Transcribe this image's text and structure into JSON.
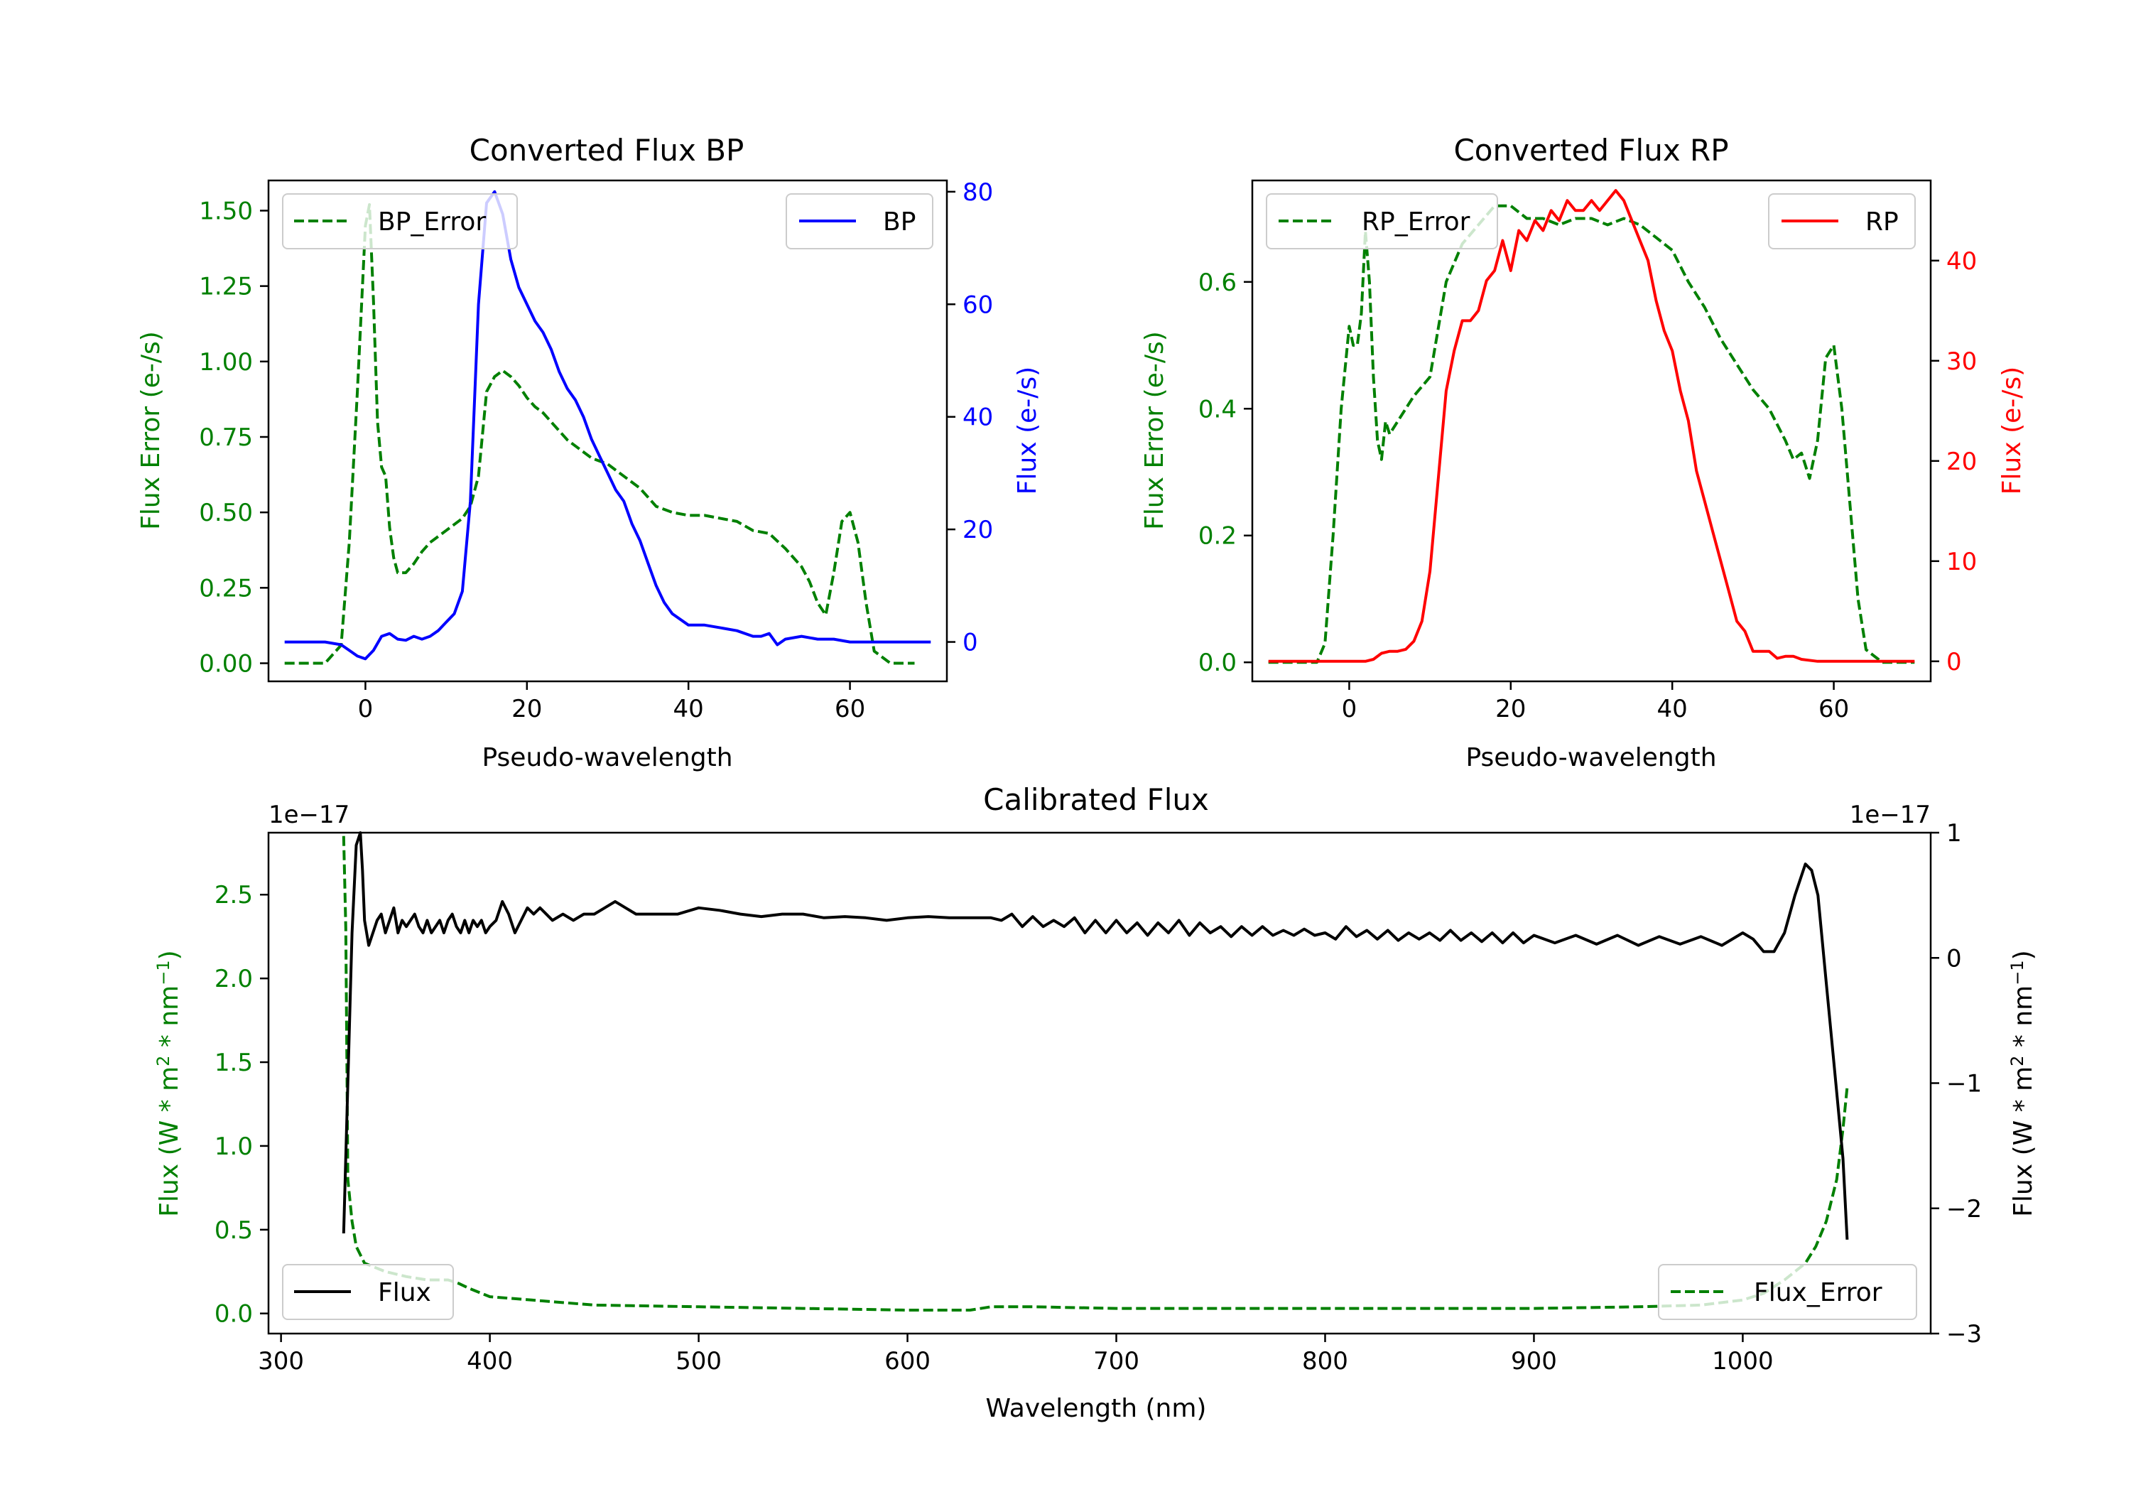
{
  "chart_data": [
    {
      "id": "bp",
      "type": "line",
      "title": "Converted Flux BP",
      "xlabel": "Pseudo-wavelength",
      "xlim": [
        -12,
        72
      ],
      "xticks": [
        0,
        20,
        40,
        60
      ],
      "left_axis": {
        "label": "Flux Error (e-/s)",
        "color": "#008000",
        "ylim": [
          -0.06,
          1.6
        ],
        "ticks": [
          0.0,
          0.25,
          0.5,
          0.75,
          1.0,
          1.25,
          1.5
        ],
        "tick_labels": [
          "0.00",
          "0.25",
          "0.50",
          "0.75",
          "1.00",
          "1.25",
          "1.50"
        ]
      },
      "right_axis": {
        "label": "Flux (e-/s)",
        "color": "#0000ff",
        "ylim": [
          -7,
          82
        ],
        "ticks": [
          0,
          20,
          40,
          60,
          80
        ],
        "tick_labels": [
          "0",
          "20",
          "40",
          "60",
          "80"
        ]
      },
      "series": [
        {
          "name": "BP_Error",
          "axis": "left",
          "color": "#008000",
          "dashed": true,
          "x": [
            -10,
            -5,
            -3,
            -2,
            -1,
            0,
            0.5,
            1,
            1.5,
            2,
            2.5,
            3,
            3.5,
            4,
            5,
            6,
            7,
            8,
            9,
            10,
            11,
            12,
            13,
            14,
            15,
            16,
            17,
            18,
            19,
            20,
            21,
            22,
            23,
            24,
            25,
            26,
            28,
            30,
            32,
            34,
            36,
            38,
            40,
            42,
            44,
            46,
            48,
            50,
            52,
            54,
            55,
            56,
            57,
            58,
            59,
            60,
            61,
            62,
            63,
            65,
            68
          ],
          "values": [
            0.0,
            0.0,
            0.06,
            0.4,
            0.9,
            1.45,
            1.52,
            1.2,
            0.8,
            0.65,
            0.62,
            0.45,
            0.35,
            0.3,
            0.3,
            0.33,
            0.37,
            0.4,
            0.42,
            0.44,
            0.46,
            0.48,
            0.52,
            0.62,
            0.9,
            0.95,
            0.97,
            0.95,
            0.92,
            0.88,
            0.85,
            0.83,
            0.8,
            0.77,
            0.74,
            0.72,
            0.68,
            0.66,
            0.62,
            0.58,
            0.52,
            0.5,
            0.49,
            0.49,
            0.48,
            0.47,
            0.44,
            0.43,
            0.38,
            0.32,
            0.27,
            0.2,
            0.16,
            0.3,
            0.47,
            0.5,
            0.4,
            0.2,
            0.04,
            0.0,
            0.0
          ]
        },
        {
          "name": "BP",
          "axis": "right",
          "color": "#0000ff",
          "dashed": false,
          "x": [
            -10,
            -5,
            -3,
            -2,
            -1,
            0,
            1,
            2,
            3,
            4,
            5,
            6,
            7,
            8,
            9,
            10,
            11,
            12,
            13,
            14,
            15,
            16,
            17,
            18,
            19,
            20,
            21,
            22,
            23,
            24,
            25,
            26,
            27,
            28,
            29,
            30,
            31,
            32,
            33,
            34,
            35,
            36,
            37,
            38,
            40,
            42,
            44,
            46,
            48,
            49,
            50,
            51,
            52,
            54,
            56,
            58,
            60,
            62,
            65,
            70
          ],
          "values": [
            0,
            0,
            -0.5,
            -1.5,
            -2.5,
            -3,
            -1.5,
            1,
            1.5,
            0.5,
            0.3,
            1,
            0.5,
            1,
            2,
            3.5,
            5,
            9,
            25,
            60,
            78,
            80,
            76,
            68,
            63,
            60,
            57,
            55,
            52,
            48,
            45,
            43,
            40,
            36,
            33,
            30,
            27,
            25,
            21,
            18,
            14,
            10,
            7,
            5,
            3,
            3,
            2.5,
            2,
            1,
            1,
            1.5,
            -0.5,
            0.5,
            1,
            0.5,
            0.5,
            0,
            0,
            0,
            0
          ]
        }
      ],
      "legends": [
        {
          "series": "BP_Error",
          "label": "BP_Error",
          "placement": "upper left"
        },
        {
          "series": "BP",
          "label": "BP",
          "placement": "upper right"
        }
      ]
    },
    {
      "id": "rp",
      "type": "line",
      "title": "Converted Flux RP",
      "xlabel": "Pseudo-wavelength",
      "xlim": [
        -12,
        72
      ],
      "xticks": [
        0,
        20,
        40,
        60
      ],
      "left_axis": {
        "label": "Flux Error (e-/s)",
        "color": "#008000",
        "ylim": [
          -0.03,
          0.76
        ],
        "ticks": [
          0.0,
          0.2,
          0.4,
          0.6
        ],
        "tick_labels": [
          "0.0",
          "0.2",
          "0.4",
          "0.6"
        ]
      },
      "right_axis": {
        "label": "Flux (e-/s)",
        "color": "#ff0000",
        "ylim": [
          -2,
          48
        ],
        "ticks": [
          0,
          10,
          20,
          30,
          40
        ],
        "tick_labels": [
          "0",
          "10",
          "20",
          "30",
          "40"
        ]
      },
      "series": [
        {
          "name": "RP_Error",
          "axis": "left",
          "color": "#008000",
          "dashed": true,
          "x": [
            -10,
            -4,
            -3,
            -2,
            -1,
            0,
            0.5,
            1,
            1.5,
            2,
            2.5,
            3,
            3.5,
            4,
            4.5,
            5,
            6,
            8,
            10,
            12,
            14,
            16,
            18,
            20,
            22,
            24,
            26,
            28,
            30,
            32,
            34,
            36,
            38,
            40,
            42,
            44,
            46,
            48,
            50,
            52,
            54,
            55,
            56,
            57,
            58,
            59,
            60,
            61,
            62,
            63,
            64,
            66,
            70
          ],
          "values": [
            0.0,
            0.0,
            0.03,
            0.2,
            0.4,
            0.53,
            0.5,
            0.5,
            0.55,
            0.68,
            0.6,
            0.45,
            0.35,
            0.32,
            0.38,
            0.36,
            0.38,
            0.42,
            0.45,
            0.6,
            0.66,
            0.69,
            0.72,
            0.72,
            0.7,
            0.7,
            0.69,
            0.7,
            0.7,
            0.69,
            0.7,
            0.69,
            0.67,
            0.65,
            0.6,
            0.56,
            0.51,
            0.47,
            0.43,
            0.4,
            0.35,
            0.32,
            0.33,
            0.29,
            0.35,
            0.48,
            0.5,
            0.4,
            0.25,
            0.1,
            0.02,
            0.0,
            0.0
          ]
        },
        {
          "name": "RP",
          "axis": "right",
          "color": "#ff0000",
          "dashed": false,
          "x": [
            -10,
            0,
            2,
            3,
            4,
            5,
            6,
            7,
            8,
            9,
            10,
            11,
            12,
            13,
            14,
            15,
            16,
            17,
            18,
            19,
            20,
            21,
            22,
            23,
            24,
            25,
            26,
            27,
            28,
            29,
            30,
            31,
            32,
            33,
            34,
            35,
            36,
            37,
            38,
            39,
            40,
            41,
            42,
            43,
            44,
            45,
            46,
            47,
            48,
            49,
            50,
            51,
            52,
            53,
            54,
            55,
            56,
            58,
            60,
            62,
            65,
            70
          ],
          "values": [
            0,
            0,
            0,
            0.2,
            0.8,
            1.0,
            1,
            1.2,
            2,
            4,
            9,
            18,
            27,
            31,
            34,
            34,
            35,
            38,
            39,
            42,
            39,
            43,
            42,
            44,
            43,
            45,
            44,
            46,
            45,
            45,
            46,
            45,
            46,
            47,
            46,
            44,
            42,
            40,
            36,
            33,
            31,
            27,
            24,
            19,
            16,
            13,
            10,
            7,
            4,
            3,
            1,
            1,
            1,
            0.3,
            0.5,
            0.5,
            0.2,
            0,
            0,
            0,
            0,
            0
          ]
        }
      ],
      "legends": [
        {
          "series": "RP_Error",
          "label": "RP_Error",
          "placement": "upper left"
        },
        {
          "series": "RP",
          "label": "RP",
          "placement": "upper right"
        }
      ]
    },
    {
      "id": "cal",
      "type": "line",
      "title": "Calibrated Flux",
      "xlabel": "Wavelength (nm)",
      "xlim": [
        294,
        1090
      ],
      "xticks": [
        300,
        400,
        500,
        600,
        700,
        800,
        900,
        1000
      ],
      "left_axis": {
        "label_parts": [
          "Flux (W * m",
          "2",
          " * nm",
          "−1",
          ")"
        ],
        "color": "#008000",
        "offset_text": "1e−17",
        "ylim": [
          -0.12,
          2.87
        ],
        "ticks": [
          0.0,
          0.5,
          1.0,
          1.5,
          2.0,
          2.5
        ],
        "tick_labels": [
          "0.0",
          "0.5",
          "1.0",
          "1.5",
          "2.0",
          "2.5"
        ]
      },
      "right_axis": {
        "label_parts": [
          "Flux (W * m",
          "2",
          " * nm",
          "−1",
          ")"
        ],
        "color": "#000000",
        "offset_text": "1e−17",
        "ylim": [
          -3.0,
          1.0
        ],
        "ticks": [
          -3,
          -2,
          -1,
          0,
          1
        ],
        "tick_labels": [
          "−3",
          "−2",
          "−1",
          "0",
          "1"
        ]
      },
      "series": [
        {
          "name": "Flux_Error",
          "axis": "left",
          "color": "#008000",
          "dashed": true,
          "x": [
            330,
            331,
            332,
            334,
            336,
            340,
            350,
            360,
            370,
            380,
            385,
            390,
            400,
            420,
            450,
            500,
            550,
            600,
            630,
            640,
            660,
            700,
            800,
            900,
            950,
            980,
            1000,
            1010,
            1020,
            1030,
            1035,
            1040,
            1045,
            1048,
            1050
          ],
          "values": [
            2.85,
            2.3,
            0.8,
            0.55,
            0.4,
            0.3,
            0.25,
            0.22,
            0.2,
            0.2,
            0.18,
            0.15,
            0.1,
            0.08,
            0.05,
            0.04,
            0.03,
            0.02,
            0.02,
            0.04,
            0.04,
            0.03,
            0.03,
            0.03,
            0.04,
            0.05,
            0.08,
            0.12,
            0.2,
            0.3,
            0.4,
            0.55,
            0.8,
            1.1,
            1.35
          ]
        },
        {
          "name": "Flux",
          "axis": "right",
          "color": "#000000",
          "dashed": false,
          "x": [
            330,
            332,
            334,
            336,
            338,
            339,
            340,
            342,
            344,
            346,
            348,
            350,
            352,
            354,
            356,
            358,
            360,
            362,
            364,
            366,
            368,
            370,
            372,
            374,
            376,
            378,
            380,
            382,
            384,
            386,
            388,
            390,
            392,
            394,
            396,
            398,
            400,
            403,
            406,
            409,
            412,
            415,
            418,
            421,
            424,
            427,
            430,
            435,
            440,
            445,
            450,
            455,
            460,
            465,
            470,
            475,
            480,
            490,
            500,
            510,
            520,
            530,
            540,
            550,
            560,
            570,
            580,
            590,
            600,
            610,
            620,
            630,
            640,
            645,
            650,
            655,
            660,
            665,
            670,
            675,
            680,
            685,
            690,
            695,
            700,
            705,
            710,
            715,
            720,
            725,
            730,
            735,
            740,
            745,
            750,
            755,
            760,
            765,
            770,
            775,
            780,
            785,
            790,
            795,
            800,
            805,
            810,
            815,
            820,
            825,
            830,
            835,
            840,
            845,
            850,
            855,
            860,
            865,
            870,
            875,
            880,
            885,
            890,
            895,
            900,
            910,
            920,
            930,
            940,
            950,
            960,
            970,
            980,
            990,
            1000,
            1005,
            1010,
            1015,
            1020,
            1025,
            1030,
            1033,
            1036,
            1040,
            1044,
            1048,
            1050
          ],
          "values": [
            -2.2,
            -1.0,
            0.2,
            0.9,
            1.0,
            0.7,
            0.3,
            0.1,
            0.2,
            0.3,
            0.35,
            0.2,
            0.3,
            0.4,
            0.2,
            0.3,
            0.25,
            0.3,
            0.35,
            0.25,
            0.2,
            0.3,
            0.2,
            0.25,
            0.3,
            0.2,
            0.3,
            0.35,
            0.25,
            0.2,
            0.3,
            0.2,
            0.3,
            0.25,
            0.3,
            0.2,
            0.25,
            0.3,
            0.45,
            0.35,
            0.2,
            0.3,
            0.4,
            0.35,
            0.4,
            0.35,
            0.3,
            0.35,
            0.3,
            0.35,
            0.35,
            0.4,
            0.45,
            0.4,
            0.35,
            0.35,
            0.35,
            0.35,
            0.4,
            0.38,
            0.35,
            0.33,
            0.35,
            0.35,
            0.32,
            0.33,
            0.32,
            0.3,
            0.32,
            0.33,
            0.32,
            0.32,
            0.32,
            0.3,
            0.35,
            0.25,
            0.33,
            0.25,
            0.3,
            0.25,
            0.32,
            0.2,
            0.3,
            0.2,
            0.3,
            0.2,
            0.28,
            0.18,
            0.28,
            0.2,
            0.3,
            0.18,
            0.28,
            0.2,
            0.25,
            0.17,
            0.25,
            0.18,
            0.25,
            0.18,
            0.22,
            0.18,
            0.23,
            0.18,
            0.2,
            0.15,
            0.25,
            0.17,
            0.22,
            0.15,
            0.22,
            0.14,
            0.2,
            0.15,
            0.2,
            0.14,
            0.22,
            0.14,
            0.2,
            0.13,
            0.2,
            0.12,
            0.2,
            0.12,
            0.18,
            0.12,
            0.18,
            0.11,
            0.18,
            0.1,
            0.17,
            0.11,
            0.17,
            0.1,
            0.2,
            0.15,
            0.05,
            0.05,
            0.2,
            0.5,
            0.75,
            0.7,
            0.5,
            -0.2,
            -0.9,
            -1.6,
            -2.25
          ]
        }
      ],
      "legends": [
        {
          "series": "Flux",
          "label": "Flux",
          "placement": "lower left"
        },
        {
          "series": "Flux_Error",
          "label": "Flux_Error",
          "placement": "lower right"
        }
      ]
    }
  ]
}
